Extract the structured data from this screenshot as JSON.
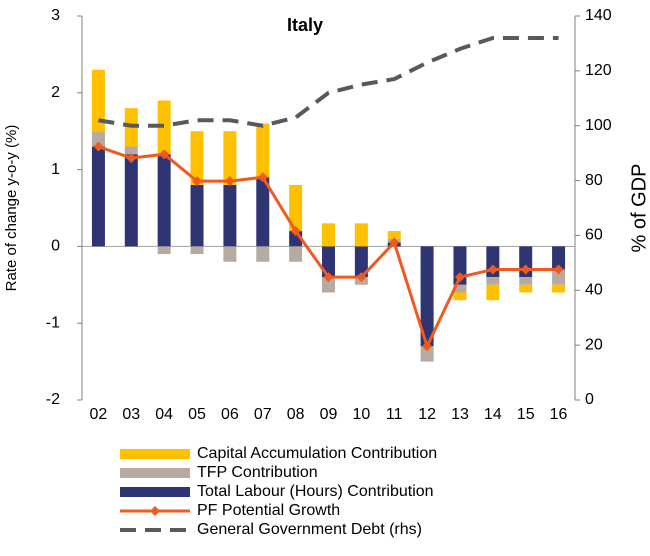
{
  "chart_data": {
    "type": "bar",
    "title": "Italy",
    "y_label": "Rate of change y-o-y (%)",
    "y2_label": "% of GDP",
    "categories": [
      "02",
      "03",
      "04",
      "05",
      "06",
      "07",
      "08",
      "09",
      "10",
      "11",
      "12",
      "13",
      "14",
      "15",
      "16"
    ],
    "ylim": [
      -2,
      3
    ],
    "yticks": [
      -2,
      -1,
      0,
      1,
      2,
      3
    ],
    "y2lim": [
      0,
      140
    ],
    "y2ticks": [
      0,
      20,
      40,
      60,
      80,
      100,
      120,
      140
    ],
    "stacked": true,
    "grid": false,
    "series": [
      {
        "name": "Capital Accumulation Contribution",
        "type": "bar",
        "color": "#ffc000",
        "values": [
          0.8,
          0.5,
          0.7,
          0.7,
          0.7,
          0.7,
          0.6,
          0.3,
          0.3,
          0.1,
          0,
          -0.1,
          -0.2,
          -0.1,
          -0.1
        ]
      },
      {
        "name": "TFP Contribution",
        "type": "bar",
        "color": "#b7aba1",
        "values": [
          0.2,
          0.1,
          -0.1,
          -0.1,
          -0.2,
          -0.2,
          -0.2,
          -0.2,
          -0.1,
          0.05,
          -0.2,
          -0.1,
          -0.1,
          -0.1,
          -0.2
        ]
      },
      {
        "name": "Total Labour (Hours) Contribution",
        "type": "bar",
        "color": "#2e3572",
        "values": [
          1.3,
          1.2,
          1.2,
          0.8,
          0.8,
          0.9,
          0.2,
          -0.4,
          -0.4,
          0.05,
          -1.3,
          -0.5,
          -0.4,
          -0.4,
          -0.3
        ]
      },
      {
        "name": "PF Potential Growth",
        "type": "line",
        "color": "#f05a1e",
        "marker": "diamond",
        "values": [
          1.3,
          1.15,
          1.2,
          0.85,
          0.85,
          0.9,
          0.2,
          -0.4,
          -0.4,
          0.05,
          -1.3,
          -0.4,
          -0.3,
          -0.3,
          -0.3
        ]
      },
      {
        "name": "General Government Debt (rhs)",
        "type": "line",
        "axis": "y2",
        "dashed": true,
        "color": "#595959",
        "values": [
          102,
          100,
          100,
          102,
          102,
          100,
          103,
          112,
          115,
          117,
          123,
          128,
          132,
          132,
          132
        ]
      }
    ]
  }
}
